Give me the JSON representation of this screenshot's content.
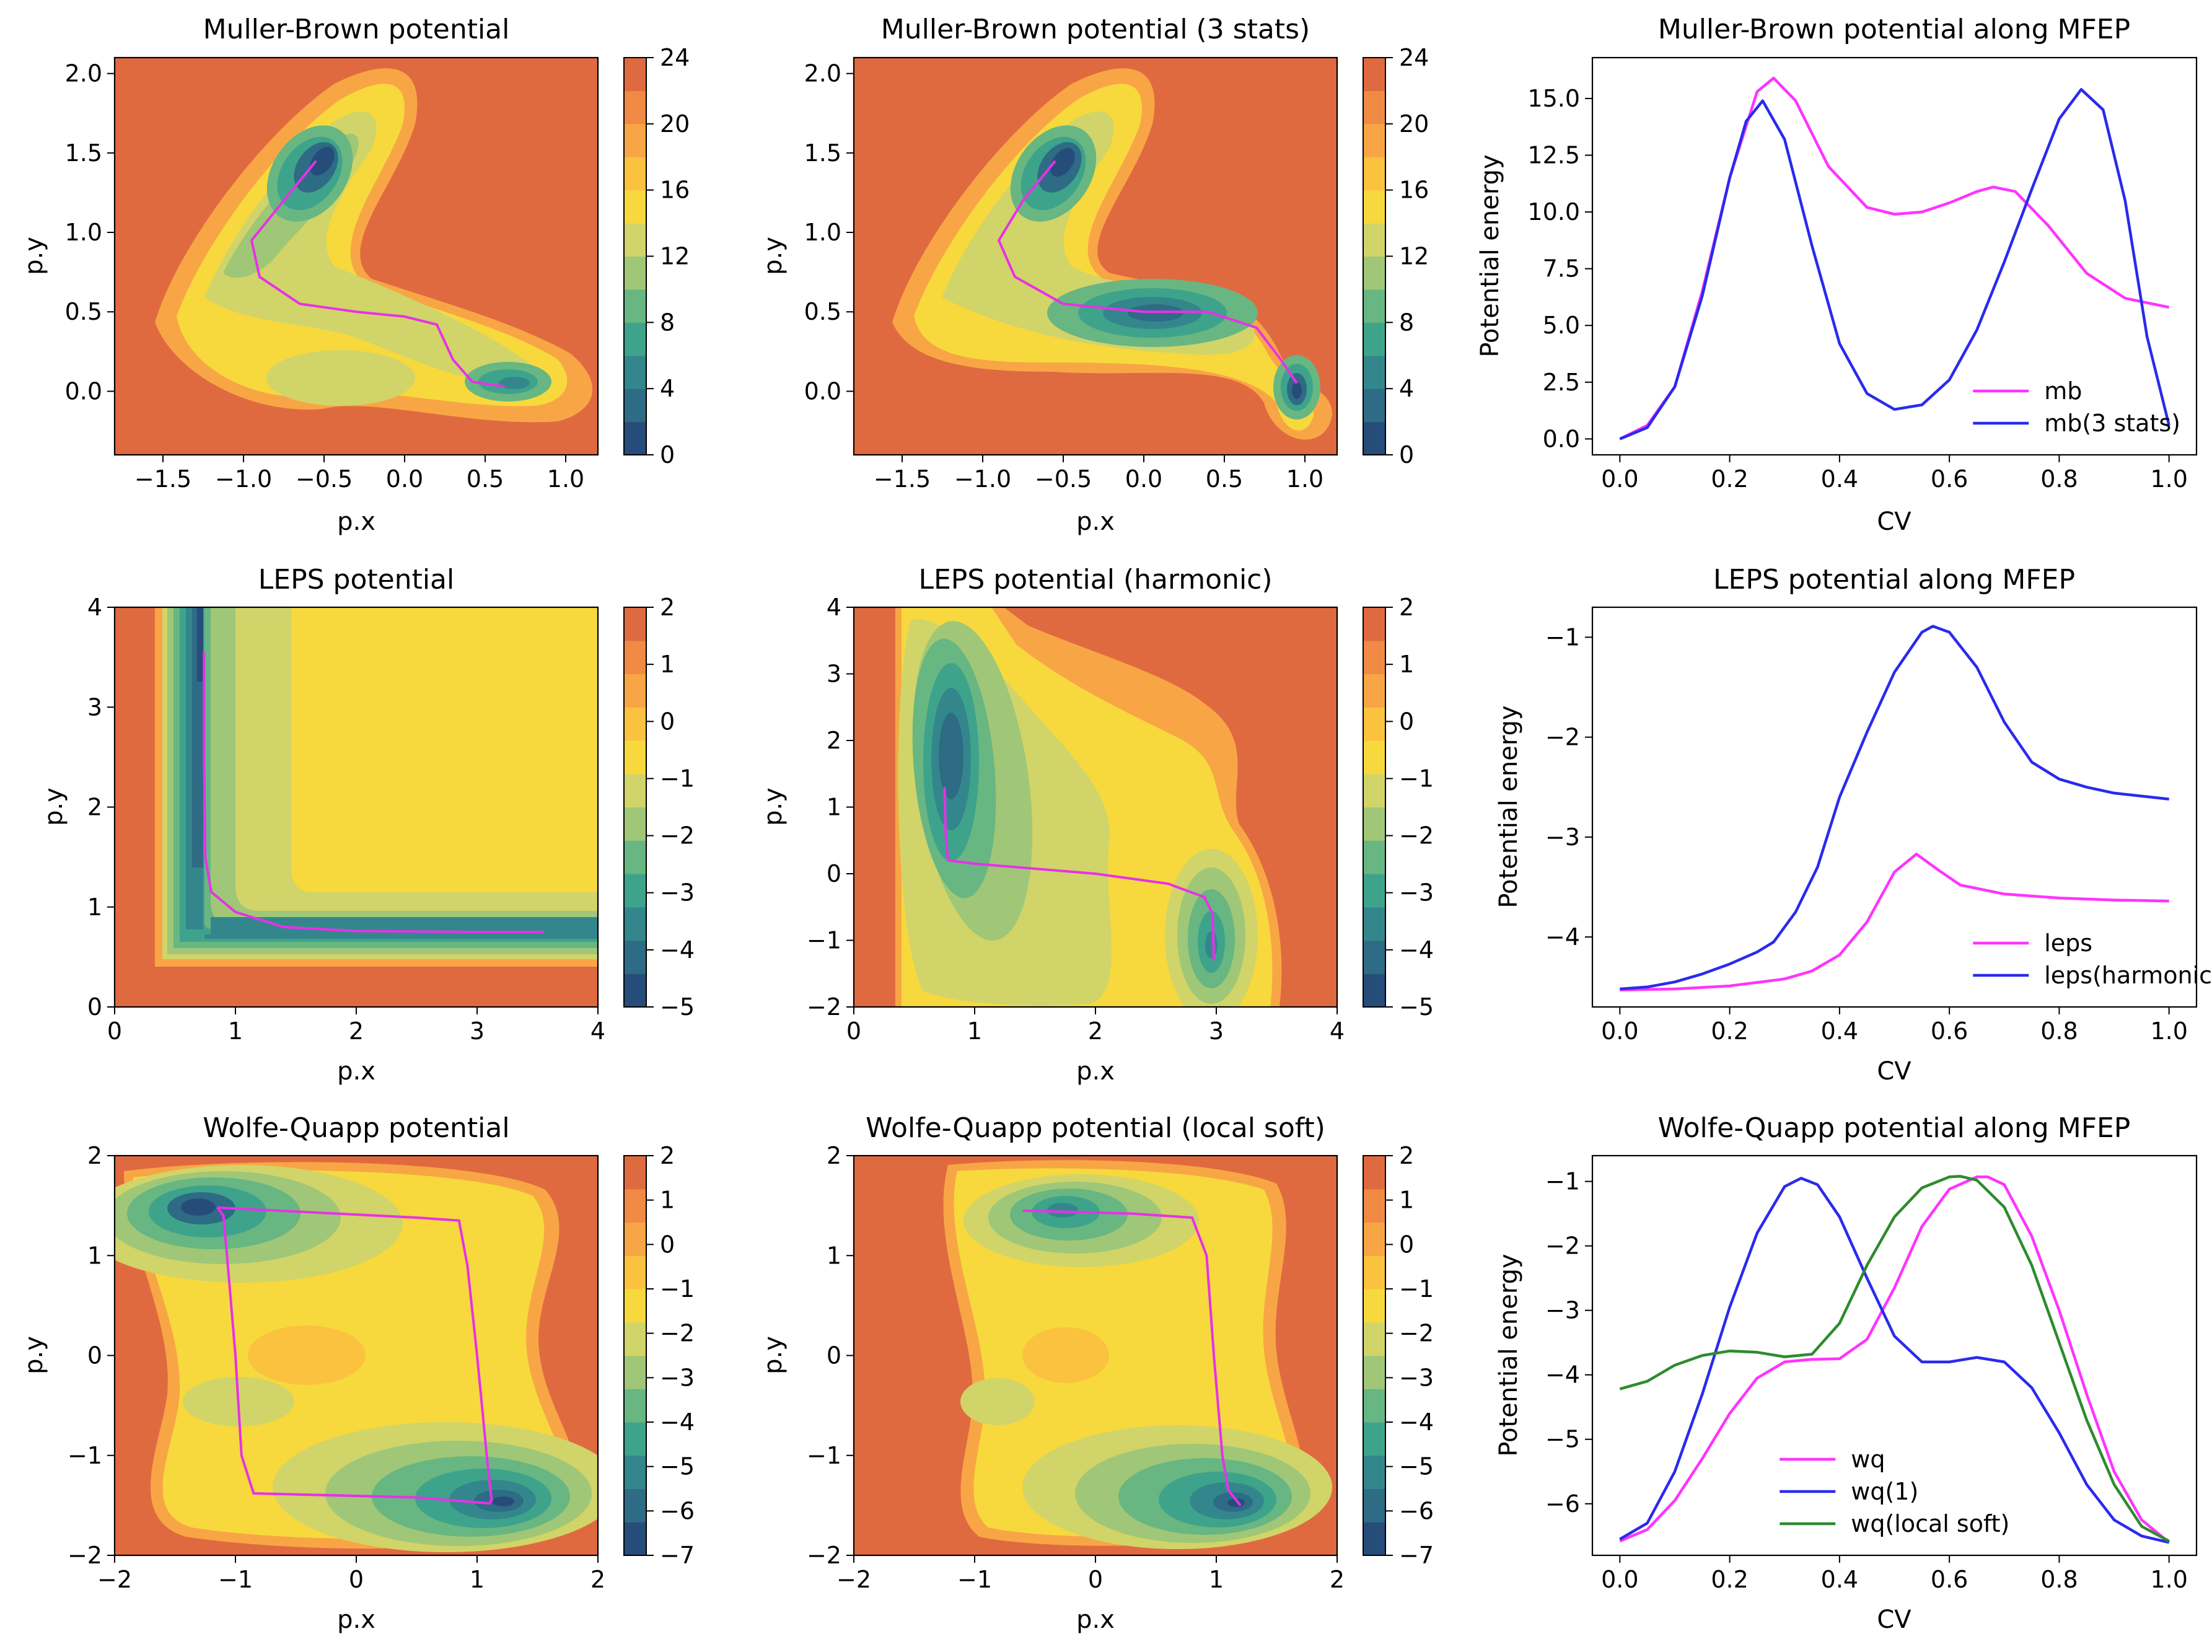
{
  "figure": {
    "background": "#ffffff"
  },
  "colormap": [
    "#264d7a",
    "#2e6b85",
    "#33878c",
    "#3ea38b",
    "#68b682",
    "#9fc777",
    "#d1d468",
    "#f7d93e",
    "#fbc23f",
    "#f8a645",
    "#f08a44",
    "#e06a40"
  ],
  "chart_data": [
    {
      "type": "heatmap",
      "id": "mb",
      "title": "Muller-Brown potential",
      "xlabel": "p.x",
      "ylabel": "p.y",
      "xlim": [
        -1.8,
        1.2
      ],
      "ylim": [
        -0.4,
        2.1
      ],
      "xticks": [
        -1.5,
        -1.0,
        -0.5,
        0.0,
        0.5,
        1.0
      ],
      "xtick_labels": [
        "−1.5",
        "−1.0",
        "−0.5",
        "0.0",
        "0.5",
        "1.0"
      ],
      "yticks": [
        0.0,
        0.5,
        1.0,
        1.5,
        2.0
      ],
      "ytick_labels": [
        "0.0",
        "0.5",
        "1.0",
        "1.5",
        "2.0"
      ],
      "colorbar": {
        "ticks": [
          0,
          4,
          8,
          12,
          16,
          20,
          24
        ],
        "labels": [
          "0",
          "4",
          "8",
          "12",
          "16",
          "20",
          "24"
        ],
        "min": 0,
        "max": 24
      },
      "path": [
        [
          -0.55,
          1.45
        ],
        [
          -0.75,
          1.2
        ],
        [
          -0.95,
          0.95
        ],
        [
          -0.9,
          0.72
        ],
        [
          -0.65,
          0.55
        ],
        [
          -0.3,
          0.5
        ],
        [
          0.0,
          0.47
        ],
        [
          0.2,
          0.42
        ],
        [
          0.3,
          0.2
        ],
        [
          0.42,
          0.06
        ],
        [
          0.55,
          0.04
        ],
        [
          0.62,
          0.03
        ]
      ]
    },
    {
      "type": "heatmap",
      "id": "mb3",
      "title": "Muller-Brown potential (3 stats)",
      "xlabel": "p.x",
      "ylabel": "p.y",
      "xlim": [
        -1.8,
        1.2
      ],
      "ylim": [
        -0.4,
        2.1
      ],
      "xticks": [
        -1.5,
        -1.0,
        -0.5,
        0.0,
        0.5,
        1.0
      ],
      "xtick_labels": [
        "−1.5",
        "−1.0",
        "−0.5",
        "0.0",
        "0.5",
        "1.0"
      ],
      "yticks": [
        0.0,
        0.5,
        1.0,
        1.5,
        2.0
      ],
      "ytick_labels": [
        "0.0",
        "0.5",
        "1.0",
        "1.5",
        "2.0"
      ],
      "colorbar": {
        "ticks": [
          0,
          4,
          8,
          12,
          16,
          20,
          24
        ],
        "labels": [
          "0",
          "4",
          "8",
          "12",
          "16",
          "20",
          "24"
        ],
        "min": 0,
        "max": 24
      },
      "path": [
        [
          -0.55,
          1.45
        ],
        [
          -0.75,
          1.2
        ],
        [
          -0.9,
          0.95
        ],
        [
          -0.8,
          0.72
        ],
        [
          -0.5,
          0.55
        ],
        [
          0.0,
          0.5
        ],
        [
          0.4,
          0.5
        ],
        [
          0.7,
          0.4
        ],
        [
          0.85,
          0.2
        ],
        [
          0.95,
          0.05
        ]
      ]
    },
    {
      "type": "line",
      "id": "mbline",
      "title": "Muller-Brown potential along MFEP",
      "xlabel": "CV",
      "ylabel": "Potential energy",
      "xlim": [
        -0.05,
        1.05
      ],
      "ylim": [
        -0.7,
        16.8
      ],
      "xticks": [
        0.0,
        0.2,
        0.4,
        0.6,
        0.8,
        1.0
      ],
      "xtick_labels": [
        "0.0",
        "0.2",
        "0.4",
        "0.6",
        "0.8",
        "1.0"
      ],
      "yticks": [
        0.0,
        2.5,
        5.0,
        7.5,
        10.0,
        12.5,
        15.0
      ],
      "ytick_labels": [
        "0.0",
        "2.5",
        "5.0",
        "7.5",
        "10.0",
        "12.5",
        "15.0"
      ],
      "legend_position": "lower-right",
      "series": [
        {
          "name": "mb",
          "color": "#ff33ff",
          "x": [
            0,
            0.05,
            0.1,
            0.15,
            0.2,
            0.25,
            0.28,
            0.32,
            0.38,
            0.45,
            0.5,
            0.55,
            0.6,
            0.65,
            0.68,
            0.72,
            0.78,
            0.85,
            0.92,
            1.0
          ],
          "y": [
            0,
            0.6,
            2.3,
            6.5,
            11.5,
            15.3,
            15.9,
            14.9,
            12.0,
            10.2,
            9.9,
            10.0,
            10.4,
            10.9,
            11.1,
            10.9,
            9.4,
            7.3,
            6.2,
            5.8
          ]
        },
        {
          "name": "mb(3 stats)",
          "color": "#2a2aee",
          "x": [
            0,
            0.05,
            0.1,
            0.15,
            0.2,
            0.23,
            0.26,
            0.3,
            0.35,
            0.4,
            0.45,
            0.5,
            0.55,
            0.6,
            0.65,
            0.7,
            0.75,
            0.8,
            0.84,
            0.88,
            0.92,
            0.96,
            1.0
          ],
          "y": [
            0,
            0.5,
            2.3,
            6.3,
            11.5,
            14.0,
            14.9,
            13.2,
            8.5,
            4.2,
            2.0,
            1.3,
            1.5,
            2.6,
            4.8,
            7.8,
            11.0,
            14.1,
            15.4,
            14.5,
            10.5,
            4.5,
            0.6
          ]
        }
      ]
    },
    {
      "type": "heatmap",
      "id": "leps",
      "title": "LEPS potential",
      "xlabel": "p.x",
      "ylabel": "p.y",
      "xlim": [
        0,
        4
      ],
      "ylim": [
        0,
        4
      ],
      "xticks": [
        0,
        1,
        2,
        3,
        4
      ],
      "xtick_labels": [
        "0",
        "1",
        "2",
        "3",
        "4"
      ],
      "yticks": [
        0,
        1,
        2,
        3,
        4
      ],
      "ytick_labels": [
        "0",
        "1",
        "2",
        "3",
        "4"
      ],
      "colorbar": {
        "ticks": [
          -5,
          -4,
          -3,
          -2,
          -1,
          0,
          1,
          2
        ],
        "labels": [
          "−5",
          "−4",
          "−3",
          "−2",
          "−1",
          "0",
          "1",
          "2"
        ],
        "min": -5,
        "max": 2
      },
      "path": [
        [
          0.74,
          3.55
        ],
        [
          0.74,
          2.5
        ],
        [
          0.75,
          1.5
        ],
        [
          0.8,
          1.15
        ],
        [
          1.0,
          0.95
        ],
        [
          1.4,
          0.8
        ],
        [
          2.0,
          0.76
        ],
        [
          3.0,
          0.75
        ],
        [
          3.55,
          0.75
        ]
      ]
    },
    {
      "type": "heatmap",
      "id": "lepsh",
      "title": "LEPS potential (harmonic)",
      "xlabel": "p.x",
      "ylabel": "p.y",
      "xlim": [
        0,
        4
      ],
      "ylim": [
        -2,
        4
      ],
      "xticks": [
        0,
        1,
        2,
        3,
        4
      ],
      "xtick_labels": [
        "0",
        "1",
        "2",
        "3",
        "4"
      ],
      "yticks": [
        -2,
        -1,
        0,
        1,
        2,
        3,
        4
      ],
      "ytick_labels": [
        "−2",
        "−1",
        "0",
        "1",
        "2",
        "3",
        "4"
      ],
      "colorbar": {
        "ticks": [
          -5,
          -4,
          -3,
          -2,
          -1,
          0,
          1,
          2
        ],
        "labels": [
          "−5",
          "−4",
          "−3",
          "−2",
          "−1",
          "0",
          "1",
          "2"
        ],
        "min": -5,
        "max": 2
      },
      "path": [
        [
          0.75,
          1.3
        ],
        [
          0.76,
          0.6
        ],
        [
          0.78,
          0.2
        ],
        [
          1.0,
          0.15
        ],
        [
          2.0,
          0.0
        ],
        [
          2.6,
          -0.15
        ],
        [
          2.9,
          -0.35
        ],
        [
          2.97,
          -0.6
        ],
        [
          2.98,
          -1.3
        ]
      ]
    },
    {
      "type": "line",
      "id": "lepsline",
      "title": "LEPS potential along MFEP",
      "xlabel": "CV",
      "ylabel": "Potential energy",
      "xlim": [
        -0.05,
        1.05
      ],
      "ylim": [
        -4.7,
        -0.7
      ],
      "xticks": [
        0.0,
        0.2,
        0.4,
        0.6,
        0.8,
        1.0
      ],
      "xtick_labels": [
        "0.0",
        "0.2",
        "0.4",
        "0.6",
        "0.8",
        "1.0"
      ],
      "yticks": [
        -4,
        -3,
        -2,
        -1
      ],
      "ytick_labels": [
        "−4",
        "−3",
        "−2",
        "−1"
      ],
      "legend_position": "lower-right",
      "series": [
        {
          "name": "leps",
          "color": "#ff33ff",
          "x": [
            0,
            0.1,
            0.2,
            0.3,
            0.35,
            0.4,
            0.45,
            0.5,
            0.54,
            0.58,
            0.62,
            0.7,
            0.8,
            0.9,
            1.0
          ],
          "y": [
            -4.53,
            -4.52,
            -4.49,
            -4.42,
            -4.34,
            -4.18,
            -3.85,
            -3.35,
            -3.17,
            -3.33,
            -3.48,
            -3.57,
            -3.61,
            -3.63,
            -3.64
          ]
        },
        {
          "name": "leps(harmonic)",
          "color": "#2a2aee",
          "x": [
            0,
            0.05,
            0.1,
            0.15,
            0.2,
            0.25,
            0.28,
            0.32,
            0.36,
            0.4,
            0.45,
            0.5,
            0.55,
            0.57,
            0.6,
            0.65,
            0.7,
            0.75,
            0.8,
            0.85,
            0.9,
            1.0
          ],
          "y": [
            -4.52,
            -4.5,
            -4.45,
            -4.37,
            -4.27,
            -4.15,
            -4.05,
            -3.75,
            -3.3,
            -2.6,
            -1.95,
            -1.35,
            -0.95,
            -0.89,
            -0.95,
            -1.3,
            -1.85,
            -2.25,
            -2.42,
            -2.5,
            -2.56,
            -2.62
          ]
        }
      ]
    },
    {
      "type": "heatmap",
      "id": "wq",
      "title": "Wolfe-Quapp potential",
      "xlabel": "p.x",
      "ylabel": "p.y",
      "xlim": [
        -2,
        2
      ],
      "ylim": [
        -2,
        2
      ],
      "xticks": [
        -2,
        -1,
        0,
        1,
        2
      ],
      "xtick_labels": [
        "−2",
        "−1",
        "0",
        "1",
        "2"
      ],
      "yticks": [
        -2,
        -1,
        0,
        1,
        2
      ],
      "ytick_labels": [
        "−2",
        "−1",
        "0",
        "1",
        "2"
      ],
      "colorbar": {
        "ticks": [
          -7,
          -6,
          -5,
          -4,
          -3,
          -2,
          -1,
          0,
          1,
          2
        ],
        "labels": [
          "−7",
          "−6",
          "−5",
          "−4",
          "−3",
          "−2",
          "−1",
          "0",
          "1",
          "2"
        ],
        "min": -7,
        "max": 2
      },
      "path": [
        [
          -1.15,
          1.48
        ],
        [
          0.5,
          1.38
        ],
        [
          0.85,
          1.35
        ],
        [
          0.92,
          0.9
        ],
        [
          1.0,
          0.0
        ],
        [
          1.08,
          -1.0
        ],
        [
          1.12,
          -1.45
        ],
        [
          1.1,
          -1.48
        ],
        [
          0.5,
          -1.42
        ],
        [
          -0.85,
          -1.38
        ],
        [
          -0.95,
          -1.0
        ],
        [
          -1.0,
          0.0
        ],
        [
          -1.07,
          1.0
        ],
        [
          -1.1,
          1.4
        ],
        [
          -1.15,
          1.48
        ]
      ]
    },
    {
      "type": "heatmap",
      "id": "wqs",
      "title": "Wolfe-Quapp potential (local soft)",
      "xlabel": "p.x",
      "ylabel": "p.y",
      "xlim": [
        -2,
        2
      ],
      "ylim": [
        -2,
        2
      ],
      "xticks": [
        -2,
        -1,
        0,
        1,
        2
      ],
      "xtick_labels": [
        "−2",
        "−1",
        "0",
        "1",
        "2"
      ],
      "yticks": [
        -2,
        -1,
        0,
        1,
        2
      ],
      "ytick_labels": [
        "−2",
        "−1",
        "0",
        "1",
        "2"
      ],
      "colorbar": {
        "ticks": [
          -7,
          -6,
          -5,
          -4,
          -3,
          -2,
          -1,
          0,
          1,
          2
        ],
        "labels": [
          "−7",
          "−6",
          "−5",
          "−4",
          "−3",
          "−2",
          "−1",
          "0",
          "1",
          "2"
        ],
        "min": -7,
        "max": 2
      },
      "path": [
        [
          -0.6,
          1.45
        ],
        [
          0.3,
          1.42
        ],
        [
          0.8,
          1.38
        ],
        [
          0.92,
          1.0
        ],
        [
          0.98,
          0.0
        ],
        [
          1.05,
          -1.0
        ],
        [
          1.1,
          -1.35
        ],
        [
          1.2,
          -1.5
        ]
      ]
    },
    {
      "type": "line",
      "id": "wqline",
      "title": "Wolfe-Quapp potential along MFEP",
      "xlabel": "CV",
      "ylabel": "Potential energy",
      "xlim": [
        -0.05,
        1.05
      ],
      "ylim": [
        -6.8,
        -0.6
      ],
      "xticks": [
        0.0,
        0.2,
        0.4,
        0.6,
        0.8,
        1.0
      ],
      "xtick_labels": [
        "0.0",
        "0.2",
        "0.4",
        "0.6",
        "0.8",
        "1.0"
      ],
      "yticks": [
        -6,
        -5,
        -4,
        -3,
        -2,
        -1
      ],
      "ytick_labels": [
        "−6",
        "−5",
        "−4",
        "−3",
        "−2",
        "−1"
      ],
      "legend_position": "lower-center",
      "series": [
        {
          "name": "wq",
          "color": "#ff33ff",
          "x": [
            0,
            0.05,
            0.1,
            0.15,
            0.2,
            0.25,
            0.3,
            0.35,
            0.4,
            0.45,
            0.5,
            0.55,
            0.6,
            0.65,
            0.67,
            0.7,
            0.75,
            0.8,
            0.85,
            0.9,
            0.95,
            1.0
          ],
          "y": [
            -6.58,
            -6.4,
            -5.95,
            -5.3,
            -4.6,
            -4.05,
            -3.8,
            -3.76,
            -3.75,
            -3.45,
            -2.65,
            -1.7,
            -1.12,
            -0.93,
            -0.93,
            -1.05,
            -1.85,
            -3.0,
            -4.3,
            -5.5,
            -6.25,
            -6.6
          ]
        },
        {
          "name": "wq(1)",
          "color": "#2a2aee",
          "x": [
            0,
            0.05,
            0.1,
            0.15,
            0.2,
            0.25,
            0.3,
            0.33,
            0.36,
            0.4,
            0.45,
            0.5,
            0.55,
            0.6,
            0.65,
            0.7,
            0.75,
            0.8,
            0.85,
            0.9,
            0.95,
            1.0
          ],
          "y": [
            -6.55,
            -6.3,
            -5.5,
            -4.3,
            -2.95,
            -1.8,
            -1.08,
            -0.95,
            -1.05,
            -1.55,
            -2.5,
            -3.4,
            -3.8,
            -3.8,
            -3.73,
            -3.8,
            -4.2,
            -4.9,
            -5.7,
            -6.25,
            -6.5,
            -6.6
          ]
        },
        {
          "name": "wq(local soft)",
          "color": "#2e8b2e",
          "x": [
            0,
            0.05,
            0.1,
            0.15,
            0.2,
            0.25,
            0.3,
            0.35,
            0.4,
            0.45,
            0.5,
            0.55,
            0.6,
            0.62,
            0.65,
            0.7,
            0.75,
            0.8,
            0.85,
            0.9,
            0.95,
            1.0
          ],
          "y": [
            -4.22,
            -4.1,
            -3.85,
            -3.7,
            -3.63,
            -3.65,
            -3.72,
            -3.68,
            -3.2,
            -2.3,
            -1.55,
            -1.1,
            -0.93,
            -0.92,
            -0.98,
            -1.4,
            -2.3,
            -3.5,
            -4.7,
            -5.7,
            -6.35,
            -6.58
          ]
        }
      ]
    }
  ]
}
